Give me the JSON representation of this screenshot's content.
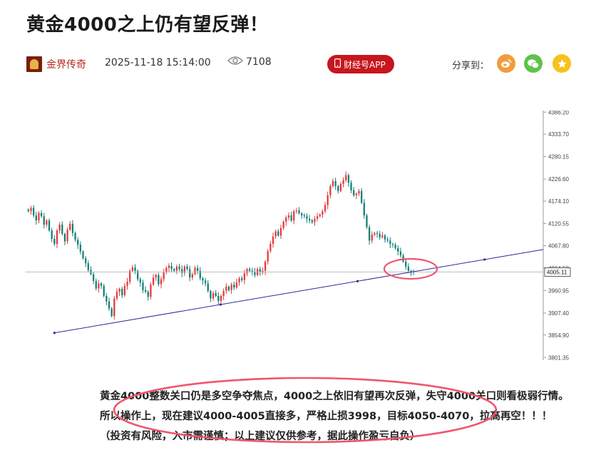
{
  "article": {
    "title": "黄金4000之上仍有望反弹！",
    "author": "金界传奇",
    "datetime": "2025-11-18 15:14:00",
    "views": "7108",
    "app_button": "财经号APP",
    "share_label": "分享到：",
    "share_icons": [
      "weibo-icon",
      "wechat-icon",
      "favorite-icon"
    ],
    "paragraphs": [
      "黄金4000整数关口仍是多空争夺焦点，4000之上依旧有望再次反弹，失守4000关口则看极弱行情。",
      "所以操作上，现在建议4000-4005直接多，严格止损3998，目标4050-4070，拉高再空！！！",
      "（投资有风险，入市需谨慎；以上建议仅供参考，据此操作盈亏自负）"
    ]
  },
  "colors": {
    "up": "#e5393a",
    "down": "#0f7f76",
    "accent": "#c7161e",
    "annotation": "#f0566a",
    "trendline": "#2a2a9a"
  },
  "chart_data": {
    "type": "candlestick",
    "y_ticks": [
      "4386.20",
      "4333.70",
      "4280.15",
      "4226.60",
      "4174.10",
      "4120.55",
      "4067.80",
      "4014.50",
      "3960.95",
      "3907.40",
      "3854.90",
      "3801.35"
    ],
    "current_price": "4005.11",
    "ylim": [
      3795,
      4390
    ],
    "closes": [
      4150,
      4158,
      4140,
      4128,
      4146,
      4138,
      4118,
      4128,
      4104,
      4084,
      4072,
      4104,
      4118,
      4096,
      4078,
      4106,
      4120,
      4098,
      4082,
      4070,
      4054,
      4038,
      4026,
      4010,
      4000,
      3984,
      3966,
      3978,
      3972,
      3948,
      3935,
      3918,
      3900,
      3942,
      3958,
      3965,
      3950,
      3972,
      3982,
      4008,
      4016,
      4008,
      3988,
      3980,
      3962,
      3958,
      3946,
      3975,
      3992,
      3998,
      3976,
      3988,
      4004,
      4015,
      4020,
      4012,
      4008,
      4018,
      4012,
      4003,
      4018,
      4012,
      3992,
      4000,
      4015,
      4008,
      3990,
      3985,
      3978,
      3960,
      3942,
      3955,
      3948,
      3936,
      3948,
      3960,
      3970,
      3962,
      3975,
      3968,
      3980,
      3990,
      3986,
      4002,
      4012,
      4008,
      4006,
      3998,
      4012,
      4004,
      4008,
      4030,
      4055,
      4072,
      4090,
      4102,
      4092,
      4110,
      4125,
      4135,
      4140,
      4128,
      4150,
      4152,
      4145,
      4140,
      4138,
      4132,
      4128,
      4124,
      4132,
      4138,
      4142,
      4150,
      4165,
      4188,
      4210,
      4222,
      4210,
      4198,
      4215,
      4224,
      4236,
      4218,
      4200,
      4188,
      4192,
      4198,
      4170,
      4140,
      4112,
      4080,
      4094,
      4098,
      4096,
      4088,
      4092,
      4083,
      4080,
      4072,
      4070,
      4062,
      4054,
      4045,
      4030,
      4018,
      4008,
      4006,
      4005
    ]
  }
}
